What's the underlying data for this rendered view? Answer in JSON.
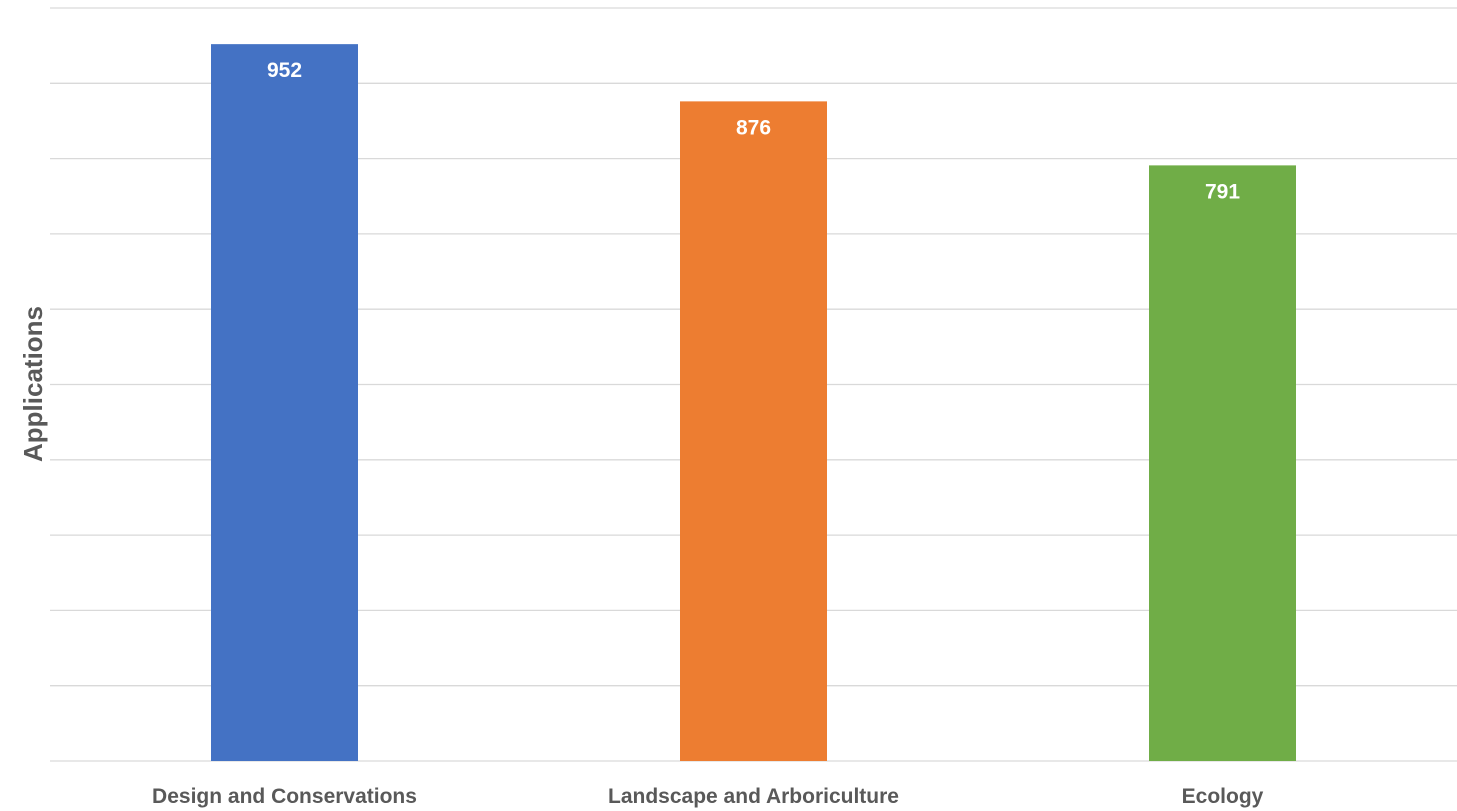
{
  "chart_data": {
    "type": "bar",
    "title": "",
    "xlabel": "",
    "ylabel": "Applications",
    "categories": [
      "Design and Conservations",
      "Landscape and Arboriculture",
      "Ecology"
    ],
    "values": [
      952,
      876,
      791
    ],
    "data_labels": [
      "952",
      "876",
      "791"
    ],
    "colors": [
      "#4472c4",
      "#ed7d31",
      "#70ad47"
    ],
    "ylim": [
      0,
      1000
    ],
    "y_tick_step": 100,
    "y_tick_labels_visible": false,
    "grid": true,
    "legend": "none"
  }
}
